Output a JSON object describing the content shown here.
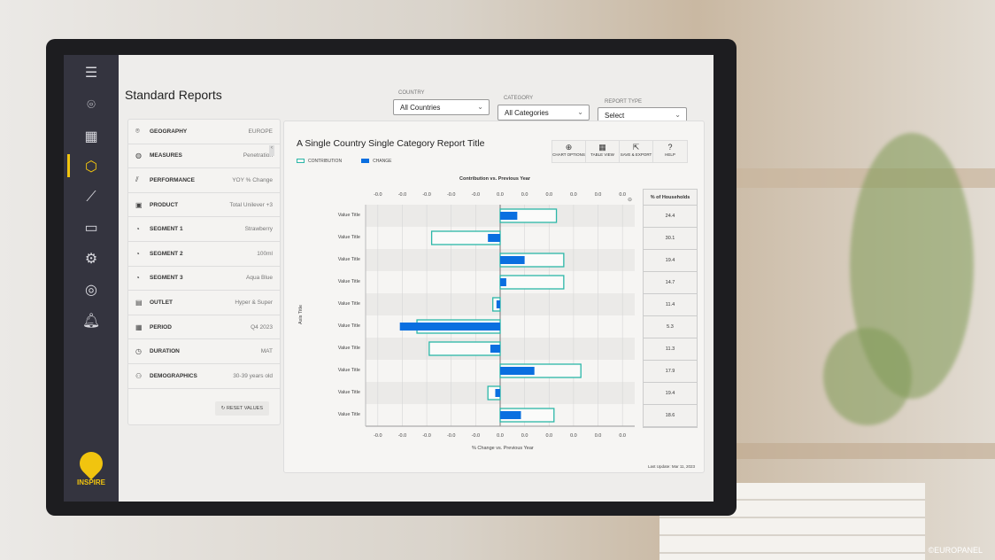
{
  "app": {
    "name": "INSPIRE",
    "page_title": "Standard Reports",
    "copyright": "©EUROPANEL"
  },
  "nav": {
    "items": [
      "menu-icon",
      "location-icon",
      "grid-icon",
      "reports-icon",
      "trend-icon",
      "video-icon",
      "settings-icon",
      "user-icon",
      "bell-icon"
    ],
    "active": "reports-icon",
    "accent": "#f1c40f"
  },
  "filters": {
    "country": {
      "label": "COUNTRY",
      "value": "All Countries"
    },
    "category": {
      "label": "CATEGORY",
      "value": "All Categories"
    },
    "report_type": {
      "label": "REPORT TYPE",
      "value": "Select"
    }
  },
  "panel": {
    "rows": [
      {
        "label": "GEOGRAPHY",
        "value": "EUROPE",
        "icon": "location-icon"
      },
      {
        "label": "MEASURES",
        "value": "Penetration",
        "icon": "measures-icon"
      },
      {
        "label": "PERFORMANCE",
        "value": "YOY % Change",
        "icon": "chart-icon"
      },
      {
        "label": "PRODUCT",
        "value": "Total Unilever +3",
        "icon": "product-icon"
      },
      {
        "label": "SEGMENT 1",
        "value": "Strawberry",
        "icon": "segment-icon"
      },
      {
        "label": "SEGMENT 2",
        "value": "100ml",
        "icon": "segment-icon"
      },
      {
        "label": "SEGMENT 3",
        "value": "Aqua Blue",
        "icon": "segment-icon"
      },
      {
        "label": "OUTLET",
        "value": "Hyper & Super",
        "icon": "store-icon"
      },
      {
        "label": "PERIOD",
        "value": "Q4 2023",
        "icon": "calendar-icon"
      },
      {
        "label": "DURATION",
        "value": "MAT",
        "icon": "clock-icon"
      },
      {
        "label": "DEMOGRAPHICS",
        "value": "30-39 years old",
        "icon": "people-icon"
      }
    ],
    "reset_label": "RESET VALUES"
  },
  "report": {
    "title": "A Single Country Single Category Report Title",
    "tools": [
      "CHART OPTIONS",
      "TABLE VIEW",
      "SAVE & EXPORT",
      "HELP"
    ],
    "last_update": "Last Update: Mar 11, 2023"
  },
  "chart_data": {
    "type": "bar",
    "orientation": "horizontal",
    "title": "Contribution vs. Previous Year",
    "xlabel": "% Change vs. Previous Year",
    "ylabel": "Axis Title",
    "categories": [
      "Value Title",
      "Value Title",
      "Value Title",
      "Value Title",
      "Value Title",
      "Value Title",
      "Value Title",
      "Value Title",
      "Value Title",
      "Value Title"
    ],
    "x_tick_labels": [
      "-0.0",
      "-0.0",
      "-0.0",
      "-0.0",
      "-0.0",
      "0.0",
      "0.0",
      "0.0",
      "0.0",
      "0.0",
      "0.0"
    ],
    "xlim": [
      -5.5,
      5.5
    ],
    "grid": true,
    "legend_position": "top-left",
    "series": [
      {
        "name": "CONTRIBUTION",
        "style": "outline",
        "color": "#2bb7a8",
        "values": [
          2.3,
          -2.8,
          2.6,
          2.6,
          -0.3,
          -3.4,
          -2.9,
          3.3,
          -0.5,
          2.2
        ]
      },
      {
        "name": "CHANGE",
        "style": "fill",
        "color": "#0a6fe0",
        "values": [
          0.7,
          -0.5,
          1.0,
          0.25,
          -0.15,
          -4.1,
          -0.4,
          1.4,
          -0.2,
          0.85
        ]
      }
    ],
    "side_table": {
      "header": "% of Households",
      "values": [
        "24.4",
        "30.1",
        "19.4",
        "14.7",
        "11.4",
        "5.3",
        "11.3",
        "17.9",
        "19.4",
        "18.6"
      ]
    }
  }
}
